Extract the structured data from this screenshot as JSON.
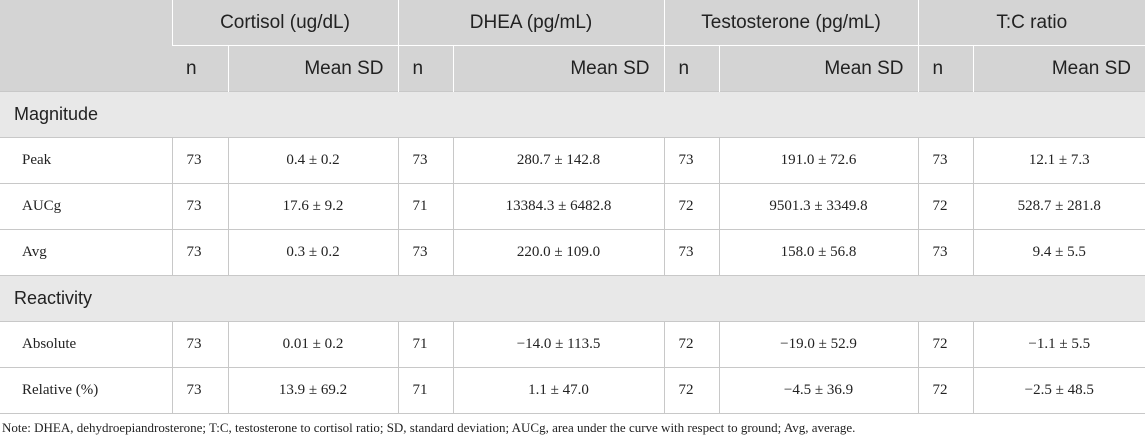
{
  "header": {
    "columns": [
      "Cortisol (ug/dL)",
      "DHEA (pg/mL)",
      "Testosterone (pg/mL)",
      "T:C ratio"
    ],
    "sub_n": "n",
    "sub_mean": "Mean SD"
  },
  "sections": [
    {
      "title": "Magnitude",
      "rows": [
        {
          "label": "Peak",
          "values": [
            "73",
            "0.4 ± 0.2",
            "73",
            "280.7 ± 142.8",
            "73",
            "191.0 ± 72.6",
            "73",
            "12.1 ± 7.3"
          ]
        },
        {
          "label": "AUCg",
          "values": [
            "73",
            "17.6 ± 9.2",
            "71",
            "13384.3 ± 6482.8",
            "72",
            "9501.3 ± 3349.8",
            "72",
            "528.7 ± 281.8"
          ]
        },
        {
          "label": "Avg",
          "values": [
            "73",
            "0.3 ± 0.2",
            "73",
            "220.0 ± 109.0",
            "73",
            "158.0 ± 56.8",
            "73",
            "9.4 ± 5.5"
          ]
        }
      ]
    },
    {
      "title": "Reactivity",
      "rows": [
        {
          "label": "Absolute",
          "values": [
            "73",
            "0.01 ± 0.2",
            "71",
            "−14.0 ± 113.5",
            "72",
            "−19.0 ± 52.9",
            "72",
            "−1.1 ± 5.5"
          ]
        },
        {
          "label": "Relative (%)",
          "values": [
            "73",
            "13.9 ± 69.2",
            "71",
            "1.1 ± 47.0",
            "72",
            "−4.5 ± 36.9",
            "72",
            "−2.5 ± 48.5"
          ]
        }
      ]
    }
  ],
  "note": "Note: DHEA, dehydroepiandrosterone; T:C, testosterone to cortisol ratio; SD, standard deviation; AUCg, area under the curve with respect to ground; Avg, average."
}
